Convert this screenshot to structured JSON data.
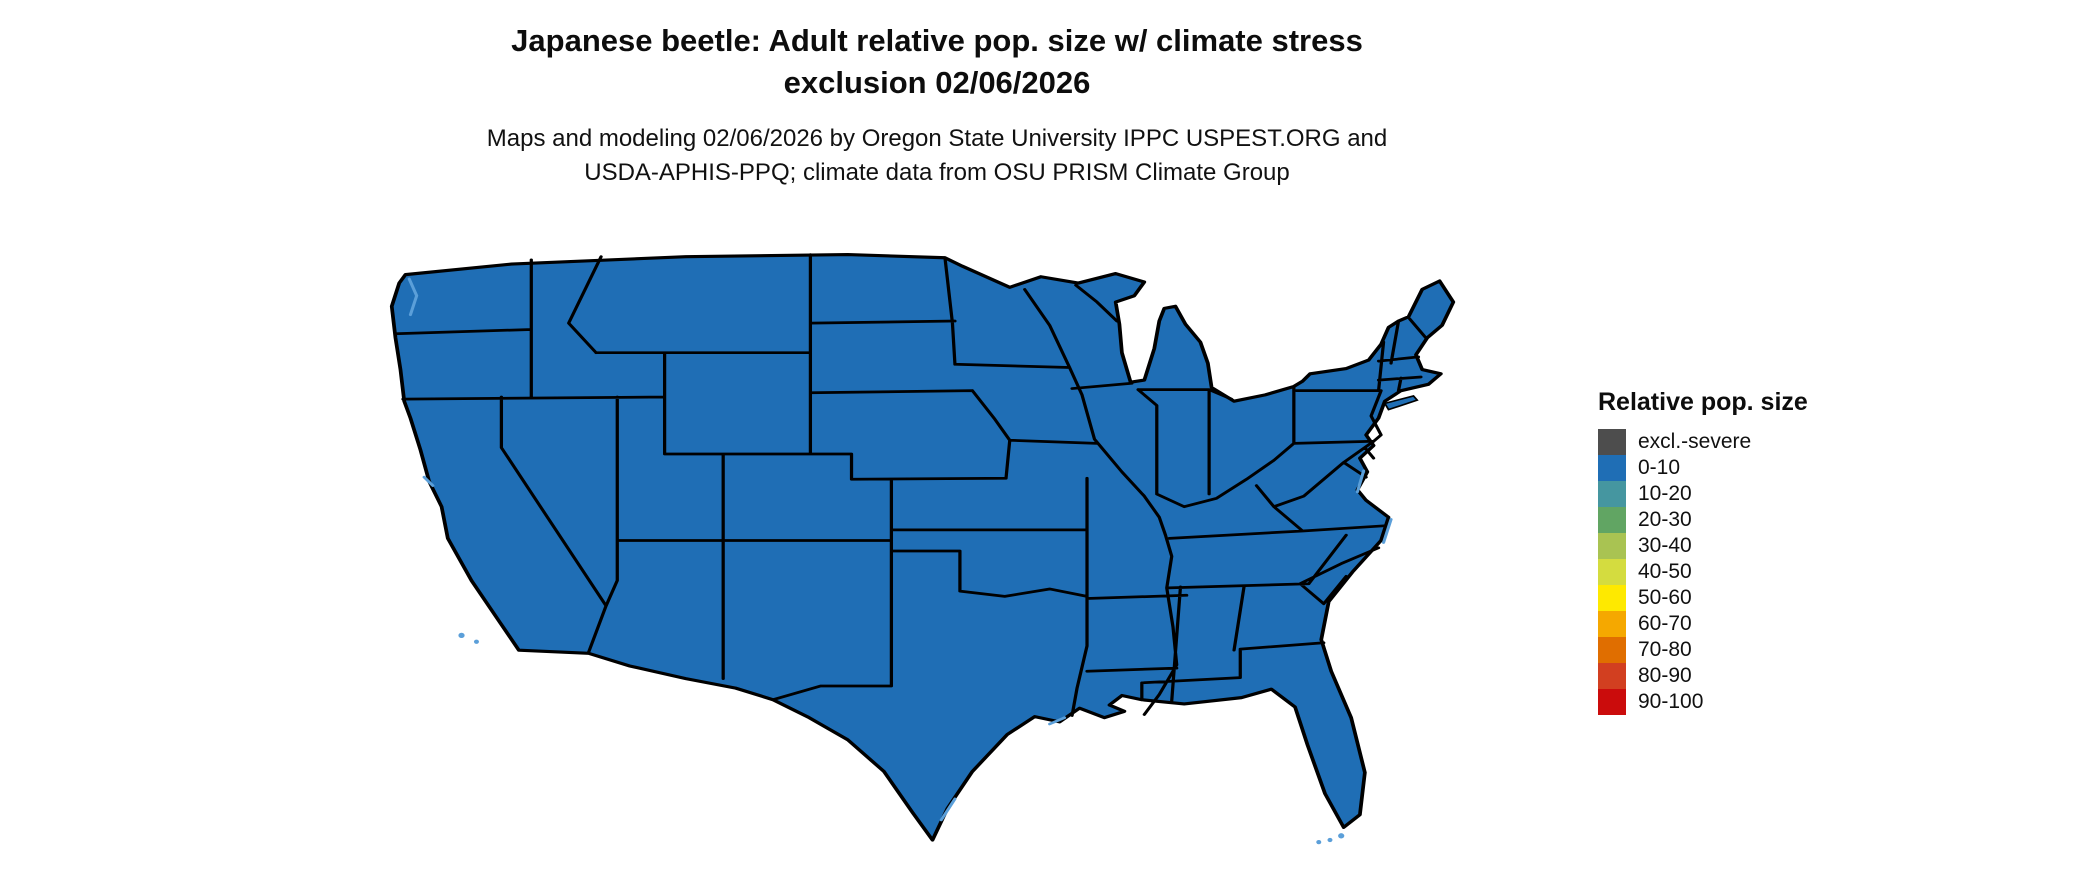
{
  "header": {
    "title_line1": "Japanese beetle: Adult relative pop. size w/ climate stress",
    "title_line2": "exclusion 02/06/2026",
    "subtitle_line1": "Maps and modeling 02/06/2026 by Oregon State University IPPC USPEST.ORG and",
    "subtitle_line2": "USDA-APHIS-PPQ; climate data from OSU PRISM Climate Group"
  },
  "legend": {
    "title": "Relative pop. size",
    "items": [
      {
        "label": "excl.-severe",
        "color": "#4d4d4d"
      },
      {
        "label": "0-10",
        "color": "#1f6eb5"
      },
      {
        "label": "10-20",
        "color": "#4596a0"
      },
      {
        "label": "20-30",
        "color": "#61a563"
      },
      {
        "label": "30-40",
        "color": "#a9c352"
      },
      {
        "label": "40-50",
        "color": "#d4dc3f"
      },
      {
        "label": "50-60",
        "color": "#fee900"
      },
      {
        "label": "60-70",
        "color": "#f5a800"
      },
      {
        "label": "70-80",
        "color": "#e06e00"
      },
      {
        "label": "80-90",
        "color": "#d23f20"
      },
      {
        "label": "90-100",
        "color": "#cb0c0c"
      }
    ]
  },
  "map": {
    "region": "Contiguous United States",
    "type": "choropleth",
    "all_states_category": "0-10",
    "fill_color": "#1f6eb5",
    "border_color": "#000000",
    "water_color": "#5b9fd9",
    "background_color": "#ffffff"
  }
}
